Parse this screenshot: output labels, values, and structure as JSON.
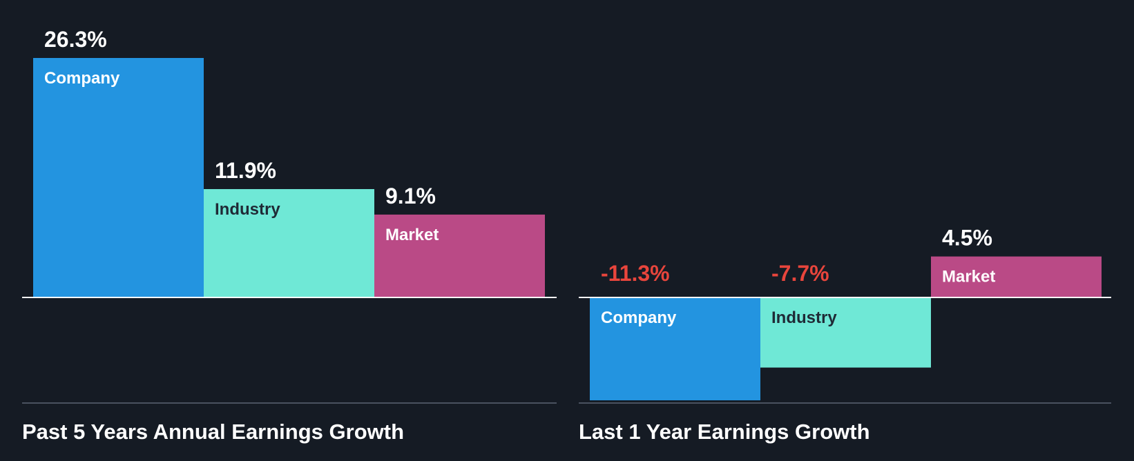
{
  "colors": {
    "background": "#151b24",
    "company": "#2394e0",
    "industry": "#6fe8d6",
    "market": "#ba4a86",
    "positive_text": "#ffffff",
    "negative_text": "#e8453c",
    "baseline": "#ffffff",
    "bottom_rule": "#4a5260"
  },
  "chart_data": [
    {
      "type": "bar",
      "title": "Past 5 Years Annual Earnings Growth",
      "categories": [
        "Company",
        "Industry",
        "Market"
      ],
      "values": [
        26.3,
        11.9,
        9.1
      ],
      "labels": [
        "26.3%",
        "11.9%",
        "9.1%"
      ],
      "ylim": [
        -11.7,
        26.3
      ],
      "xlabel": "",
      "ylabel": "",
      "grid": false
    },
    {
      "type": "bar",
      "title": "Last 1 Year Earnings Growth",
      "categories": [
        "Company",
        "Industry",
        "Market"
      ],
      "values": [
        -11.3,
        -7.7,
        4.5
      ],
      "labels": [
        "-11.3%",
        "-7.7%",
        "4.5%"
      ],
      "ylim": [
        -11.3,
        26.3
      ],
      "xlabel": "",
      "ylabel": "",
      "grid": false
    }
  ]
}
